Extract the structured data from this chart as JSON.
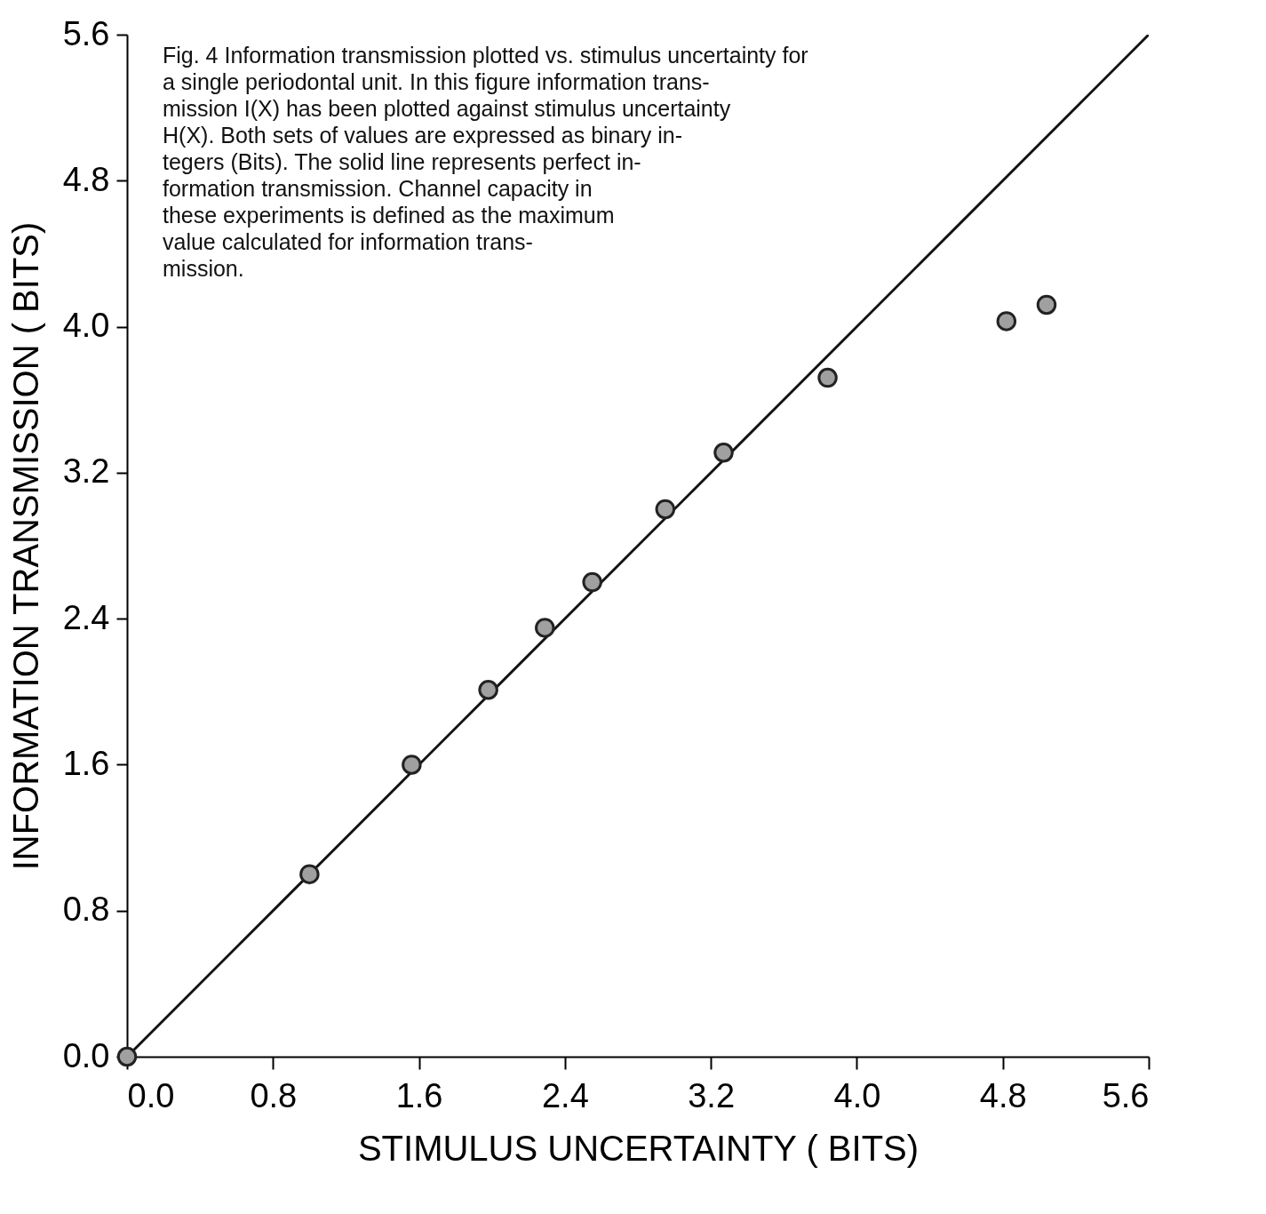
{
  "chart_data": {
    "type": "scatter",
    "xlabel": "STIMULUS  UNCERTAINTY  ( BITS)",
    "ylabel": "INFORMATION  TRANSMISSION  ( BITS)",
    "xlim": [
      0,
      5.6
    ],
    "ylim": [
      0,
      5.6
    ],
    "xticks": [
      {
        "value": 0,
        "label": "0.0"
      },
      0.8,
      1.6,
      2.4,
      3.2,
      {
        "value": 4,
        "label": "4.0"
      },
      4.8,
      5.6
    ],
    "yticks": [
      {
        "value": 0,
        "label": "0.0"
      },
      0.8,
      1.6,
      2.4,
      3.2,
      {
        "value": 4,
        "label": "4.0"
      },
      4.8,
      5.6
    ],
    "grid": false,
    "series": [
      {
        "type": "line",
        "color": "#111111",
        "line_style": "solid",
        "x": [
          0,
          5.6
        ],
        "values": [
          0,
          5.6
        ]
      },
      {
        "marker": "circle",
        "color": "#a0a0a0",
        "x": [
          0,
          1.0,
          1.56,
          1.98,
          2.29,
          2.55,
          2.95,
          3.27,
          3.84,
          4.82,
          5.04
        ],
        "values": [
          0,
          1.0,
          1.6,
          2.01,
          2.35,
          2.6,
          3.0,
          3.31,
          3.72,
          4.03,
          4.12
        ]
      }
    ],
    "annotations": [
      "Fig. 4    Information transmission plotted vs. stimulus uncertainty for\n    a single periodontal unit.  In this figure information trans-\nmission I(X) has been plotted against stimulus uncertainty\n  H(X).  Both sets of values are expressed as binary in-\n  tegers (Bits).  The solid line represents perfect in-\n  formation transmission.  Channel capacity in\n  these experiments is defined as the maximum\n  value calculated for information trans-\n  mission."
    ]
  }
}
